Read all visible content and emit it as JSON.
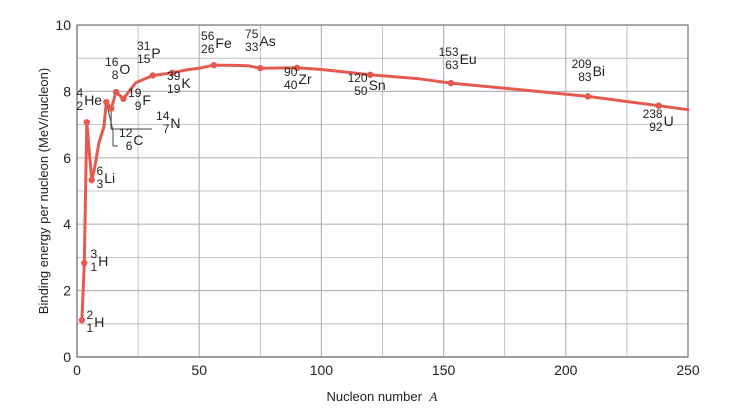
{
  "chart_data": {
    "type": "line",
    "title": "",
    "xlabel": "Nucleon number",
    "xlabel_symbol": "A",
    "ylabel": "Binding energy per nucleon (MeV/nucleon)",
    "xlim": [
      0,
      250
    ],
    "ylim": [
      0,
      10
    ],
    "x_ticks": [
      0,
      50,
      100,
      150,
      200,
      250
    ],
    "y_ticks": [
      0,
      2,
      4,
      6,
      8,
      10
    ],
    "grid": true,
    "line_color": "#e55a4f",
    "grid_color": "#b5b5b5",
    "curve": [
      [
        2,
        1.11
      ],
      [
        3,
        2.83
      ],
      [
        4,
        7.07
      ],
      [
        6,
        5.33
      ],
      [
        7,
        5.61
      ],
      [
        9,
        6.46
      ],
      [
        11,
        6.93
      ],
      [
        12,
        7.68
      ],
      [
        14,
        7.48
      ],
      [
        16,
        7.98
      ],
      [
        19,
        7.78
      ],
      [
        24,
        8.26
      ],
      [
        31,
        8.48
      ],
      [
        39,
        8.56
      ],
      [
        45,
        8.65
      ],
      [
        50,
        8.7
      ],
      [
        56,
        8.79
      ],
      [
        62,
        8.79
      ],
      [
        70,
        8.77
      ],
      [
        75,
        8.7
      ],
      [
        90,
        8.71
      ],
      [
        100,
        8.66
      ],
      [
        120,
        8.5
      ],
      [
        140,
        8.38
      ],
      [
        153,
        8.25
      ],
      [
        180,
        8.06
      ],
      [
        209,
        7.85
      ],
      [
        238,
        7.57
      ],
      [
        250,
        7.45
      ]
    ],
    "points": [
      {
        "A": 2,
        "E": 1.11,
        "mass": "2",
        "atomic": "1",
        "symbol": "H"
      },
      {
        "A": 3,
        "E": 2.83,
        "mass": "3",
        "atomic": "1",
        "symbol": "H"
      },
      {
        "A": 4,
        "E": 7.07,
        "mass": "4",
        "atomic": "2",
        "symbol": "He"
      },
      {
        "A": 6,
        "E": 5.33,
        "mass": "6",
        "atomic": "3",
        "symbol": "Li"
      },
      {
        "A": 12,
        "E": 7.68,
        "mass": "12",
        "atomic": "6",
        "symbol": "C"
      },
      {
        "A": 14,
        "E": 7.48,
        "mass": "14",
        "atomic": "7",
        "symbol": "N"
      },
      {
        "A": 16,
        "E": 7.98,
        "mass": "16",
        "atomic": "8",
        "symbol": "O"
      },
      {
        "A": 19,
        "E": 7.78,
        "mass": "19",
        "atomic": "9",
        "symbol": "F"
      },
      {
        "A": 31,
        "E": 8.48,
        "mass": "31",
        "atomic": "15",
        "symbol": "P"
      },
      {
        "A": 39,
        "E": 8.56,
        "mass": "39",
        "atomic": "19",
        "symbol": "K"
      },
      {
        "A": 56,
        "E": 8.79,
        "mass": "56",
        "atomic": "26",
        "symbol": "Fe"
      },
      {
        "A": 75,
        "E": 8.7,
        "mass": "75",
        "atomic": "33",
        "symbol": "As"
      },
      {
        "A": 90,
        "E": 8.71,
        "mass": "90",
        "atomic": "40",
        "symbol": "Zr"
      },
      {
        "A": 120,
        "E": 8.5,
        "mass": "120",
        "atomic": "50",
        "symbol": "Sn"
      },
      {
        "A": 153,
        "E": 8.25,
        "mass": "153",
        "atomic": "63",
        "symbol": "Eu"
      },
      {
        "A": 209,
        "E": 7.85,
        "mass": "209",
        "atomic": "83",
        "symbol": "Bi"
      },
      {
        "A": 238,
        "E": 7.57,
        "mass": "238",
        "atomic": "92",
        "symbol": "U"
      }
    ]
  }
}
